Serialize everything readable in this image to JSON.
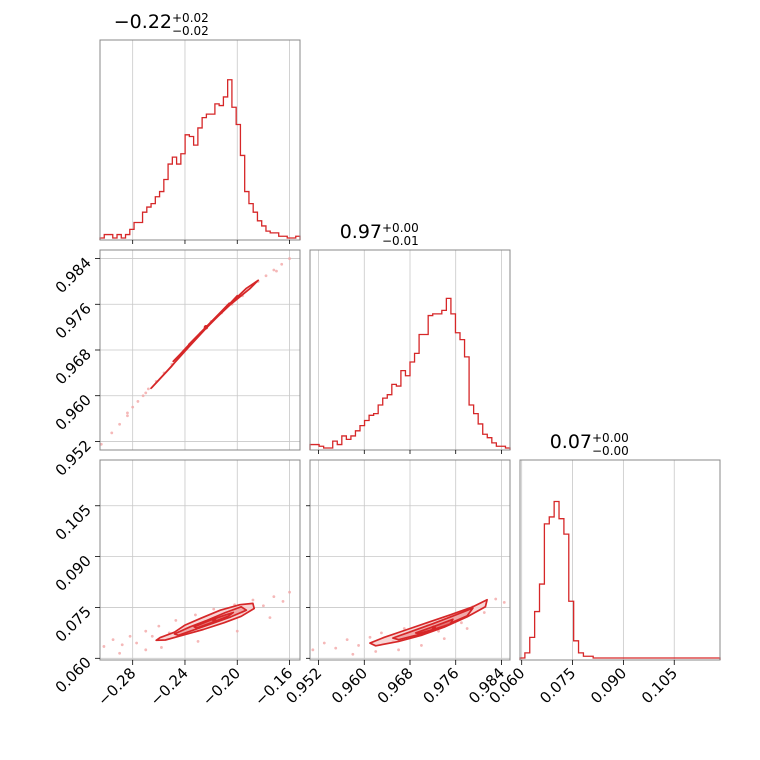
{
  "chart_data": {
    "type": "corner",
    "color": "#d62728",
    "parameters": [
      {
        "title": {
          "median": "−0.22",
          "plus": "+0.02",
          "minus": "−0.02"
        },
        "range": [
          -0.305,
          -0.152
        ],
        "ticks": [
          -0.28,
          -0.24,
          -0.2,
          -0.16
        ],
        "tick_labels": [
          "−0.28",
          "−0.24",
          "−0.20",
          "−0.16"
        ],
        "hist": [
          0.0,
          0.02,
          0.02,
          0.0,
          0.02,
          0.0,
          0.02,
          0.05,
          0.09,
          0.09,
          0.15,
          0.18,
          0.2,
          0.24,
          0.27,
          0.34,
          0.43,
          0.47,
          0.43,
          0.49,
          0.6,
          0.59,
          0.54,
          0.64,
          0.7,
          0.72,
          0.72,
          0.78,
          0.77,
          0.82,
          0.92,
          0.76,
          0.66,
          0.48,
          0.27,
          0.2,
          0.15,
          0.1,
          0.07,
          0.04,
          0.03,
          0.03,
          0.01,
          0.01,
          0.0,
          0.0,
          0.01
        ]
      },
      {
        "title": {
          "median": "0.97",
          "plus": "+0.00",
          "minus": "−0.01"
        },
        "range": [
          0.9505,
          0.9855
        ],
        "ticks": [
          0.952,
          0.96,
          0.968,
          0.976,
          0.984
        ],
        "tick_labels": [
          "0.952",
          "0.960",
          "0.968",
          "0.976",
          "0.984"
        ],
        "hist": [
          0.02,
          0.02,
          0.01,
          0.0,
          0.0,
          0.04,
          0.02,
          0.07,
          0.05,
          0.07,
          0.1,
          0.13,
          0.16,
          0.19,
          0.2,
          0.25,
          0.29,
          0.31,
          0.37,
          0.36,
          0.45,
          0.42,
          0.5,
          0.55,
          0.66,
          0.66,
          0.77,
          0.78,
          0.78,
          0.8,
          0.87,
          0.78,
          0.67,
          0.63,
          0.53,
          0.25,
          0.2,
          0.14,
          0.08,
          0.06,
          0.03,
          0.01,
          0.01,
          0.0
        ]
      },
      {
        "title": {
          "median": "0.07",
          "plus": "+0.00",
          "minus": "−0.00"
        },
        "range": [
          0.0595,
          0.1185
        ],
        "ticks": [
          0.06,
          0.075,
          0.09,
          0.105
        ],
        "tick_labels": [
          "0.060",
          "0.075",
          "0.090",
          "0.105"
        ],
        "hist": [
          0.0,
          0.03,
          0.12,
          0.27,
          0.43,
          0.78,
          0.82,
          0.91,
          0.81,
          0.72,
          0.33,
          0.1,
          0.03,
          0.01,
          0.01,
          0.0,
          0.0,
          0.0,
          0.0,
          0.0,
          0.0,
          0.0,
          0.0,
          0.0,
          0.0,
          0.0,
          0.0,
          0.0,
          0.0,
          0.0,
          0.0,
          0.0,
          0.0,
          0.0,
          0.0,
          0.0,
          0.0,
          0.0,
          0.0,
          0.0,
          0.0
        ]
      }
    ],
    "pairs": [
      {
        "x": 0,
        "y": 1,
        "scatter": [
          [
            -0.304,
            0.9515
          ],
          [
            -0.296,
            0.9535
          ],
          [
            -0.29,
            0.955
          ],
          [
            -0.284,
            0.9565
          ],
          [
            -0.28,
            0.958
          ],
          [
            -0.276,
            0.959
          ],
          [
            -0.272,
            0.96
          ],
          [
            -0.268,
            0.9612
          ],
          [
            -0.262,
            0.9625
          ],
          [
            -0.256,
            0.964
          ],
          [
            -0.25,
            0.9655
          ],
          [
            -0.244,
            0.967
          ],
          [
            -0.236,
            0.969
          ],
          [
            -0.228,
            0.971
          ],
          [
            -0.22,
            0.973
          ],
          [
            -0.212,
            0.9745
          ],
          [
            -0.204,
            0.976
          ],
          [
            -0.196,
            0.9775
          ],
          [
            -0.19,
            0.979
          ],
          [
            -0.184,
            0.98
          ],
          [
            -0.178,
            0.981
          ],
          [
            -0.172,
            0.982
          ],
          [
            -0.166,
            0.983
          ],
          [
            -0.16,
            0.984
          ],
          [
            -0.284,
            0.957
          ],
          [
            -0.27,
            0.9605
          ],
          [
            -0.2,
            0.9772
          ],
          [
            -0.17,
            0.9818
          ]
        ],
        "contours": [
          [
            [
              -0.265,
              0.9615
            ],
            [
              -0.25,
              0.9652
            ],
            [
              -0.235,
              0.9693
            ],
            [
              -0.22,
              0.9728
            ],
            [
              -0.205,
              0.976
            ],
            [
              -0.19,
              0.9788
            ],
            [
              -0.184,
              0.9802
            ],
            [
              -0.193,
              0.9788
            ],
            [
              -0.208,
              0.9755
            ],
            [
              -0.223,
              0.972
            ],
            [
              -0.238,
              0.9683
            ],
            [
              -0.253,
              0.9645
            ],
            [
              -0.266,
              0.9613
            ]
          ],
          [
            [
              -0.248,
              0.9662
            ],
            [
              -0.235,
              0.9694
            ],
            [
              -0.22,
              0.9729
            ],
            [
              -0.207,
              0.9758
            ],
            [
              -0.2,
              0.9775
            ],
            [
              -0.209,
              0.9752
            ],
            [
              -0.222,
              0.9723
            ],
            [
              -0.237,
              0.9688
            ],
            [
              -0.249,
              0.966
            ]
          ],
          [
            [
              -0.236,
              0.9692
            ],
            [
              -0.22,
              0.9729
            ],
            [
              -0.206,
              0.9762
            ],
            [
              -0.221,
              0.9726
            ],
            [
              -0.237,
              0.969
            ]
          ]
        ]
      },
      {
        "x": 0,
        "y": 2,
        "scatter": [
          [
            -0.302,
            0.0635
          ],
          [
            -0.295,
            0.0655
          ],
          [
            -0.288,
            0.064
          ],
          [
            -0.282,
            0.0665
          ],
          [
            -0.277,
            0.0645
          ],
          [
            -0.27,
            0.068
          ],
          [
            -0.265,
            0.0665
          ],
          [
            -0.26,
            0.0695
          ],
          [
            -0.252,
            0.0675
          ],
          [
            -0.247,
            0.0712
          ],
          [
            -0.24,
            0.0692
          ],
          [
            -0.232,
            0.0728
          ],
          [
            -0.225,
            0.0708
          ],
          [
            -0.218,
            0.0745
          ],
          [
            -0.21,
            0.0722
          ],
          [
            -0.202,
            0.0758
          ],
          [
            -0.196,
            0.0735
          ],
          [
            -0.188,
            0.0772
          ],
          [
            -0.18,
            0.0755
          ],
          [
            -0.172,
            0.0782
          ],
          [
            -0.165,
            0.0768
          ],
          [
            -0.16,
            0.0795
          ],
          [
            -0.29,
            0.0615
          ],
          [
            -0.258,
            0.0632
          ],
          [
            -0.23,
            0.065
          ],
          [
            -0.2,
            0.068
          ],
          [
            -0.175,
            0.072
          ],
          [
            -0.27,
            0.0625
          ]
        ],
        "contours": [
          [
            [
              -0.259,
              0.0661
            ],
            [
              -0.248,
              0.0677
            ],
            [
              -0.24,
              0.0698
            ],
            [
              -0.228,
              0.0718
            ],
            [
              -0.213,
              0.0742
            ],
            [
              -0.198,
              0.0758
            ],
            [
              -0.188,
              0.0762
            ],
            [
              -0.187,
              0.0747
            ],
            [
              -0.197,
              0.0724
            ],
            [
              -0.21,
              0.0705
            ],
            [
              -0.226,
              0.0685
            ],
            [
              -0.242,
              0.0668
            ],
            [
              -0.255,
              0.0654
            ],
            [
              -0.262,
              0.0653
            ]
          ],
          [
            [
              -0.248,
              0.0672
            ],
            [
              -0.236,
              0.0693
            ],
            [
              -0.223,
              0.0712
            ],
            [
              -0.209,
              0.0735
            ],
            [
              -0.197,
              0.0752
            ],
            [
              -0.193,
              0.0742
            ],
            [
              -0.205,
              0.0722
            ],
            [
              -0.219,
              0.0703
            ],
            [
              -0.233,
              0.0684
            ],
            [
              -0.245,
              0.0668
            ]
          ],
          [
            [
              -0.233,
              0.0693
            ],
            [
              -0.221,
              0.0712
            ],
            [
              -0.209,
              0.0728
            ],
            [
              -0.203,
              0.0735
            ],
            [
              -0.207,
              0.0724
            ],
            [
              -0.219,
              0.0706
            ],
            [
              -0.231,
              0.0689
            ]
          ]
        ]
      },
      {
        "x": 1,
        "y": 2,
        "scatter": [
          [
            0.951,
            0.0625
          ],
          [
            0.953,
            0.0645
          ],
          [
            0.955,
            0.063
          ],
          [
            0.957,
            0.0655
          ],
          [
            0.959,
            0.0638
          ],
          [
            0.961,
            0.0662
          ],
          [
            0.963,
            0.0675
          ],
          [
            0.965,
            0.065
          ],
          [
            0.967,
            0.0688
          ],
          [
            0.969,
            0.0665
          ],
          [
            0.971,
            0.0702
          ],
          [
            0.973,
            0.068
          ],
          [
            0.975,
            0.0725
          ],
          [
            0.977,
            0.0705
          ],
          [
            0.979,
            0.0752
          ],
          [
            0.981,
            0.0735
          ],
          [
            0.983,
            0.0775
          ],
          [
            0.9845,
            0.0765
          ],
          [
            0.958,
            0.0612
          ],
          [
            0.962,
            0.062
          ],
          [
            0.966,
            0.0625
          ],
          [
            0.97,
            0.0638
          ],
          [
            0.974,
            0.0658
          ],
          [
            0.978,
            0.0688
          ]
        ],
        "contours": [
          [
            [
              0.961,
              0.0645
            ],
            [
              0.9635,
              0.0662
            ],
            [
              0.967,
              0.0682
            ],
            [
              0.971,
              0.0705
            ],
            [
              0.975,
              0.0728
            ],
            [
              0.979,
              0.0752
            ],
            [
              0.9815,
              0.0773
            ],
            [
              0.9812,
              0.0752
            ],
            [
              0.978,
              0.0722
            ],
            [
              0.974,
              0.0692
            ],
            [
              0.97,
              0.0668
            ],
            [
              0.966,
              0.065
            ],
            [
              0.962,
              0.0637
            ]
          ],
          [
            [
              0.965,
              0.066
            ],
            [
              0.968,
              0.0678
            ],
            [
              0.972,
              0.0702
            ],
            [
              0.976,
              0.0728
            ],
            [
              0.979,
              0.0748
            ],
            [
              0.978,
              0.0725
            ],
            [
              0.974,
              0.0696
            ],
            [
              0.97,
              0.0672
            ],
            [
              0.966,
              0.0655
            ]
          ],
          [
            [
              0.969,
              0.0675
            ],
            [
              0.9725,
              0.0696
            ],
            [
              0.9755,
              0.0715
            ],
            [
              0.975,
              0.07
            ],
            [
              0.9715,
              0.0682
            ],
            [
              0.9695,
              0.0673
            ]
          ]
        ]
      }
    ]
  }
}
